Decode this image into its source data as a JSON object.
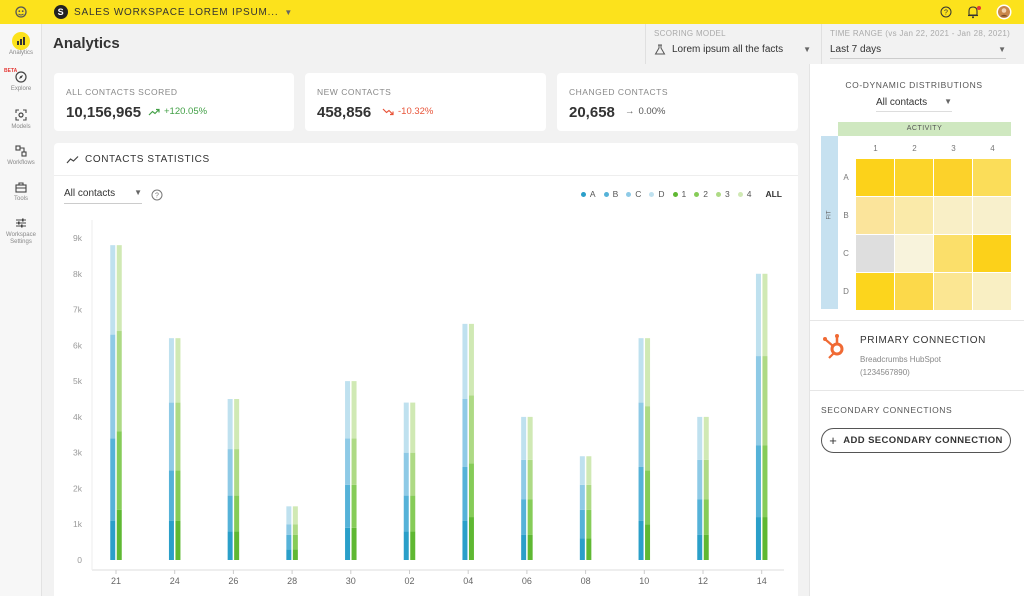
{
  "app": {
    "workspace_name": "SALES WORKSPACE LOREM IPSUM...",
    "workspace_logo_letter": "S",
    "page_title": "Analytics"
  },
  "nav": {
    "items": [
      {
        "label": "Analytics",
        "icon": "bar-chart-icon",
        "active": true
      },
      {
        "label": "Explore",
        "icon": "compass-icon",
        "badge": "BETA"
      },
      {
        "label": "Models",
        "icon": "target-icon"
      },
      {
        "label": "Workflows",
        "icon": "workflow-icon"
      },
      {
        "label": "Tools",
        "icon": "toolbox-icon"
      },
      {
        "label": "Workspace Settings",
        "icon": "sliders-icon"
      }
    ]
  },
  "filters": {
    "scoring_model_label": "SCORING MODEL",
    "scoring_model_value": "Lorem ipsum all the facts",
    "time_range_label": "TIME RANGE (vs Jan 22, 2021 - Jan 28, 2021)",
    "time_range_value": "Last 7 days"
  },
  "stats": [
    {
      "label": "ALL CONTACTS SCORED",
      "value": "10,156,965",
      "change": "+120.05%",
      "trend": "up"
    },
    {
      "label": "NEW CONTACTS",
      "value": "458,856",
      "change": "-10.32%",
      "trend": "down"
    },
    {
      "label": "CHANGED CONTACTS",
      "value": "20,658",
      "change": "0.00%",
      "trend": "flat"
    }
  ],
  "chart_section": {
    "title": "CONTACTS STATISTICS",
    "filter_value": "All contacts",
    "legend": [
      {
        "label": "A",
        "color": "#2a9fc9"
      },
      {
        "label": "B",
        "color": "#55b2d8"
      },
      {
        "label": "C",
        "color": "#8ecae6"
      },
      {
        "label": "D",
        "color": "#bfe1ef"
      },
      {
        "label": "1",
        "color": "#5fb832"
      },
      {
        "label": "2",
        "color": "#86cc58"
      },
      {
        "label": "3",
        "color": "#aeda85"
      },
      {
        "label": "4",
        "color": "#d0e9b4"
      }
    ],
    "legend_all": "ALL"
  },
  "chart_data": {
    "type": "bar",
    "stacked": true,
    "categories": [
      "21",
      "24",
      "26",
      "28",
      "30",
      "02",
      "04",
      "06",
      "08",
      "10",
      "12",
      "14"
    ],
    "ylim": [
      0,
      9000
    ],
    "yticks": [
      "0",
      "1k",
      "2k",
      "3k",
      "4k",
      "5k",
      "6k",
      "7k",
      "8k",
      "9k"
    ],
    "series": [
      {
        "name": "A",
        "stack": "fit",
        "values": [
          1100,
          1100,
          800,
          300,
          900,
          800,
          1100,
          700,
          600,
          1100,
          700,
          1200
        ]
      },
      {
        "name": "B",
        "stack": "fit",
        "values": [
          2300,
          1400,
          1000,
          400,
          1200,
          1000,
          1500,
          1000,
          800,
          1500,
          1000,
          2000
        ]
      },
      {
        "name": "C",
        "stack": "fit",
        "values": [
          2900,
          1900,
          1300,
          300,
          1300,
          1200,
          1900,
          1100,
          700,
          1800,
          1100,
          2500
        ]
      },
      {
        "name": "D",
        "stack": "fit",
        "values": [
          2500,
          1800,
          1400,
          500,
          1600,
          1400,
          2100,
          1200,
          800,
          1800,
          1200,
          2300
        ]
      },
      {
        "name": "1",
        "stack": "activity",
        "values": [
          1400,
          1100,
          800,
          300,
          900,
          800,
          1200,
          700,
          600,
          1000,
          700,
          1200
        ]
      },
      {
        "name": "2",
        "stack": "activity",
        "values": [
          2200,
          1400,
          1000,
          400,
          1200,
          1000,
          1500,
          1000,
          800,
          1500,
          1000,
          2000
        ]
      },
      {
        "name": "3",
        "stack": "activity",
        "values": [
          2800,
          1900,
          1300,
          300,
          1300,
          1200,
          1900,
          1100,
          700,
          1800,
          1100,
          2500
        ]
      },
      {
        "name": "4",
        "stack": "activity",
        "values": [
          2400,
          1800,
          1400,
          500,
          1600,
          1400,
          2000,
          1200,
          800,
          1900,
          1200,
          2300
        ]
      }
    ]
  },
  "distribution": {
    "title": "CO-DYNAMIC DISTRIBUTIONS",
    "select_value": "All contacts",
    "col_axis": "ACTIVITY",
    "row_axis": "FIT",
    "cols": [
      "1",
      "2",
      "3",
      "4"
    ],
    "rows": [
      "A",
      "B",
      "C",
      "D"
    ],
    "cells": [
      [
        "#fcd21a",
        "#fcd529",
        "#fcd22a",
        "#fbdd59"
      ],
      [
        "#fbe49b",
        "#faeaa9",
        "#f9efc6",
        "#f8f0cc"
      ],
      [
        "#dedede",
        "#f8f3dc",
        "#fbdf6a",
        "#fcd11a"
      ],
      [
        "#fcd51d",
        "#fcd94a",
        "#fbe692",
        "#f9efc3"
      ]
    ]
  },
  "connections": {
    "primary_title": "PRIMARY CONNECTION",
    "primary_name": "Breadcrumbs HubSpot",
    "primary_id": "(1234567890)",
    "secondary_title": "SECONDARY CONNECTIONS",
    "add_button": "ADD SECONDARY CONNECTION"
  }
}
